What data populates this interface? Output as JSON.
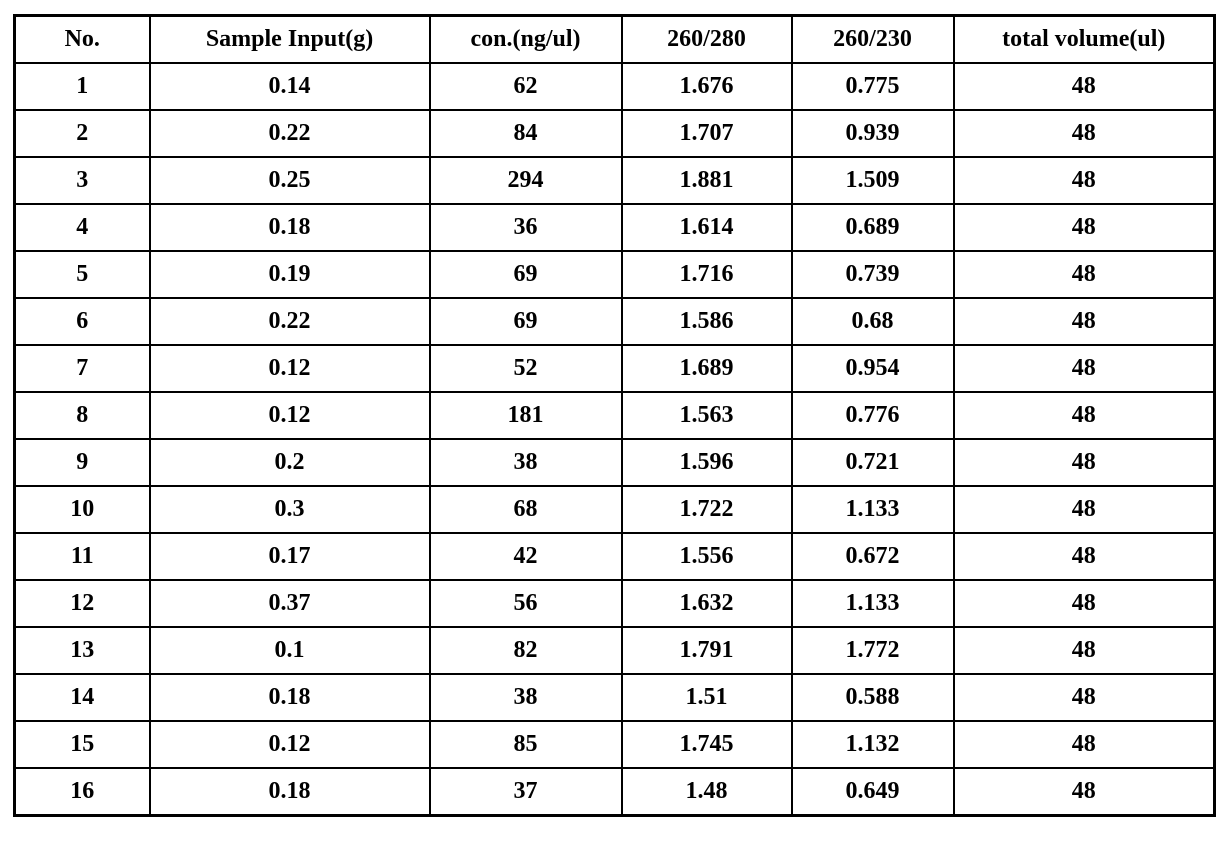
{
  "colors": {
    "border": "#000000",
    "background": "#ffffff",
    "text": "#000000"
  },
  "table": {
    "columns": [
      "No.",
      "Sample Input(g)",
      "con.(ng/ul)",
      "260/280",
      "260/230",
      "total volume(ul)"
    ],
    "rows": [
      [
        "1",
        "0.14",
        "62",
        "1.676",
        "0.775",
        "48"
      ],
      [
        "2",
        "0.22",
        "84",
        "1.707",
        "0.939",
        "48"
      ],
      [
        "3",
        "0.25",
        "294",
        "1.881",
        "1.509",
        "48"
      ],
      [
        "4",
        "0.18",
        "36",
        "1.614",
        "0.689",
        "48"
      ],
      [
        "5",
        "0.19",
        "69",
        "1.716",
        "0.739",
        "48"
      ],
      [
        "6",
        "0.22",
        "69",
        "1.586",
        "0.68",
        "48"
      ],
      [
        "7",
        "0.12",
        "52",
        "1.689",
        "0.954",
        "48"
      ],
      [
        "8",
        "0.12",
        "181",
        "1.563",
        "0.776",
        "48"
      ],
      [
        "9",
        "0.2",
        "38",
        "1.596",
        "0.721",
        "48"
      ],
      [
        "10",
        "0.3",
        "68",
        "1.722",
        "1.133",
        "48"
      ],
      [
        "11",
        "0.17",
        "42",
        "1.556",
        "0.672",
        "48"
      ],
      [
        "12",
        "0.37",
        "56",
        "1.632",
        "1.133",
        "48"
      ],
      [
        "13",
        "0.1",
        "82",
        "1.791",
        "1.772",
        "48"
      ],
      [
        "14",
        "0.18",
        "38",
        "1.51",
        "0.588",
        "48"
      ],
      [
        "15",
        "0.12",
        "85",
        "1.745",
        "1.132",
        "48"
      ],
      [
        "16",
        "0.18",
        "37",
        "1.48",
        "0.649",
        "48"
      ]
    ]
  }
}
